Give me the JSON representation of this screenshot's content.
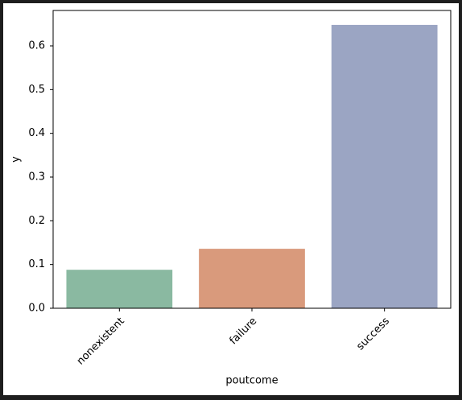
{
  "chart_data": {
    "type": "bar",
    "x_label": "poutcome",
    "y_label": "y",
    "categories": [
      "nonexistent",
      "failure",
      "success"
    ],
    "values": [
      0.088,
      0.136,
      0.648
    ],
    "colors": [
      "#8ab9a1",
      "#d99a7c",
      "#9ba5c3"
    ],
    "ylim": [
      0,
      0.681
    ],
    "yticks": [
      {
        "value": 0,
        "label": "0.0"
      },
      0.1,
      0.2,
      0.3,
      0.4,
      0.5,
      0.6
    ]
  }
}
